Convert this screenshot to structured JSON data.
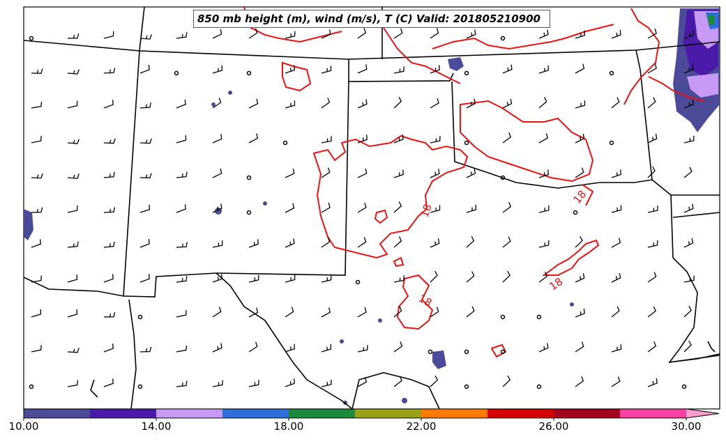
{
  "title": "850 mb height (m), wind (m/s), T (C) Valid: 201805210900",
  "contour_labels": [
    "18",
    "18",
    "18",
    "18"
  ],
  "colorbar": {
    "tick_labels": [
      "10.00",
      "14.00",
      "18.00",
      "22.00",
      "26.00",
      "30.00"
    ],
    "colors": [
      "#4b4b99",
      "#4a1aa8",
      "#c79af5",
      "#2f6fdc",
      "#1d8a3c",
      "#9aa317",
      "#ff7a00",
      "#d40000",
      "#a3001f",
      "#f540a0",
      "#ff9fd0"
    ]
  },
  "colors": {
    "contour": "#ee1111",
    "boundary": "#000000",
    "precip_light": "#4b4b99"
  }
}
